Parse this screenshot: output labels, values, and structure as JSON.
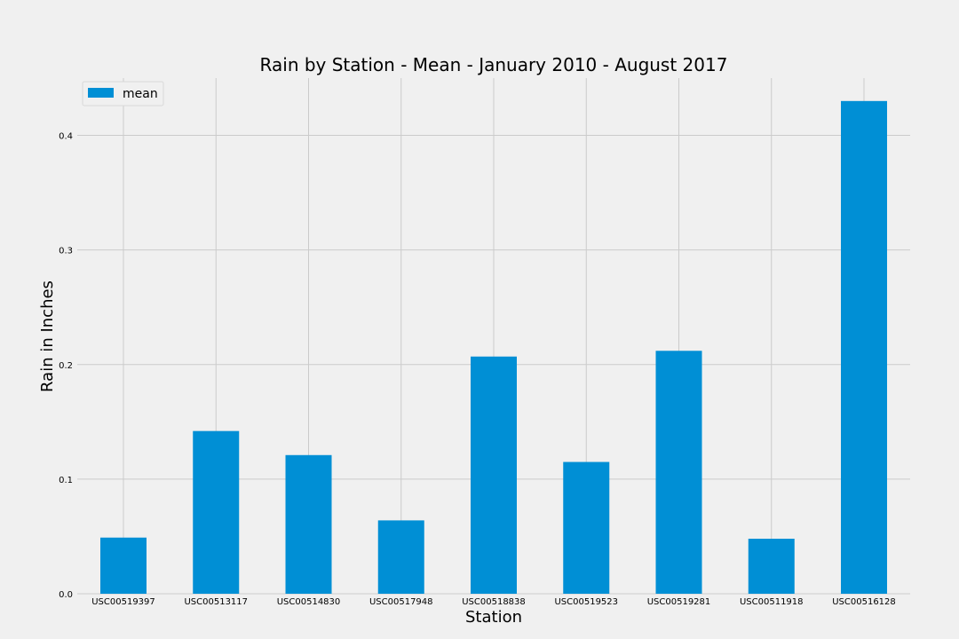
{
  "chart_data": {
    "type": "bar",
    "title": "Rain by Station - Mean - January 2010 - August 2017",
    "xlabel": "Station",
    "ylabel": "Rain in Inches",
    "categories": [
      "USC00519397",
      "USC00513117",
      "USC00514830",
      "USC00517948",
      "USC00518838",
      "USC00519523",
      "USC00519281",
      "USC00511918",
      "USC00516128"
    ],
    "series": [
      {
        "name": "mean",
        "values": [
          0.049,
          0.142,
          0.121,
          0.064,
          0.207,
          0.115,
          0.212,
          0.048,
          0.43
        ]
      }
    ],
    "ylim": [
      0,
      0.45
    ],
    "yticks": [
      0.0,
      0.1,
      0.2,
      0.3,
      0.4
    ],
    "ytick_labels": [
      "0.0",
      "0.1",
      "0.2",
      "0.3",
      "0.4"
    ],
    "grid": true,
    "legend_position": "top-left",
    "bar_color": "#008fd5",
    "grid_color": "#cbcbcb",
    "background_color": "#f0f0f0"
  }
}
